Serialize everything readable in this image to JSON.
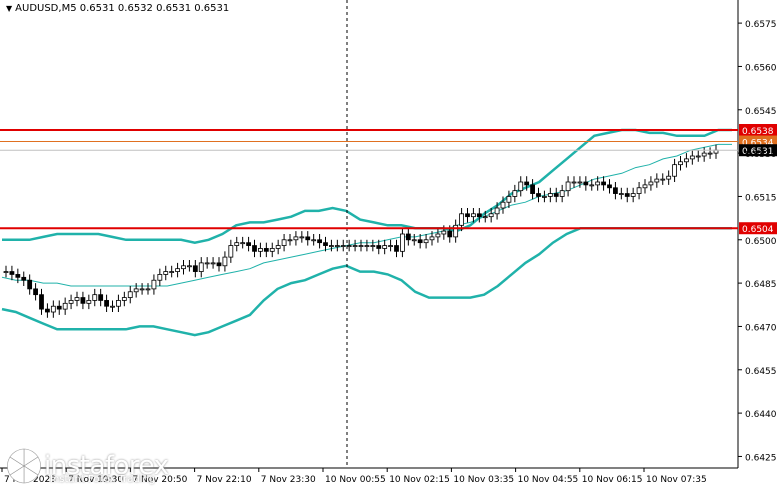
{
  "header": {
    "symbol": "AUDUSD,M5",
    "ohlc": "0.6531 0.6532 0.6531 0.6531"
  },
  "watermark": {
    "brand": "instaforex",
    "tagline": "Instant Forex Trading"
  },
  "colors": {
    "background": "#ffffff",
    "candle": "#000000",
    "bollinger": "#20b2aa",
    "resistance": "#e00000",
    "support": "#e00000",
    "price_line": "#e07020",
    "grid_vline": "#000000"
  },
  "chart_data": {
    "type": "candlestick",
    "symbol": "AUDUSD",
    "timeframe": "M5",
    "ylim": [
      0.6421,
      0.6583
    ],
    "y_ticks": [
      "0.6575",
      "0.6560",
      "0.6545",
      "0.6530",
      "0.6515",
      "0.6500",
      "0.6485",
      "0.6470",
      "0.6455",
      "0.6440",
      "0.6425"
    ],
    "x_ticks": [
      "7 Nov 2023",
      "7 Nov 19:30",
      "7 Nov 20:50",
      "7 Nov 22:10",
      "7 Nov 23:30",
      "10 Nov 00:55",
      "10 Nov 02:15",
      "10 Nov 03:35",
      "10 Nov 04:55",
      "10 Nov 06:15",
      "10 Nov 07:35"
    ],
    "horizontal_levels": [
      {
        "label": "0.6538",
        "value": 0.6538,
        "color": "#e00000"
      },
      {
        "label": "0.6534",
        "value": 0.6534,
        "color": "#e07020"
      },
      {
        "label": "0.6504",
        "value": 0.6504,
        "color": "#e00000"
      }
    ],
    "current_price": {
      "label": "0.6531",
      "value": 0.6531
    },
    "period_separator_x": "7 Nov 23:30",
    "close": [
      0.6489,
      0.6488,
      0.6487,
      0.6486,
      0.6483,
      0.6481,
      0.6476,
      0.6475,
      0.6477,
      0.6476,
      0.6478,
      0.6479,
      0.648,
      0.6478,
      0.6479,
      0.6481,
      0.6479,
      0.6477,
      0.6477,
      0.6479,
      0.648,
      0.6482,
      0.6483,
      0.6483,
      0.6483,
      0.6486,
      0.6488,
      0.6489,
      0.6489,
      0.649,
      0.6491,
      0.6491,
      0.6489,
      0.6492,
      0.6492,
      0.6492,
      0.6491,
      0.6494,
      0.6498,
      0.6499,
      0.6499,
      0.6498,
      0.6496,
      0.6497,
      0.6496,
      0.6497,
      0.6498,
      0.65,
      0.65,
      0.6501,
      0.6501,
      0.65,
      0.65,
      0.6499,
      0.6498,
      0.6498,
      0.6498,
      0.6498,
      0.6498,
      0.6498,
      0.6498,
      0.6498,
      0.6498,
      0.6497,
      0.6498,
      0.6498,
      0.6496,
      0.6502,
      0.65,
      0.65,
      0.6499,
      0.65,
      0.6501,
      0.6502,
      0.6503,
      0.6501,
      0.6505,
      0.6509,
      0.6508,
      0.6509,
      0.6508,
      0.6508,
      0.6509,
      0.6511,
      0.6513,
      0.6515,
      0.6517,
      0.652,
      0.6519,
      0.6516,
      0.6515,
      0.6515,
      0.6516,
      0.6515,
      0.6517,
      0.652,
      0.652,
      0.652,
      0.6519,
      0.6519,
      0.652,
      0.6519,
      0.6518,
      0.6516,
      0.6516,
      0.6515,
      0.6516,
      0.6518,
      0.6519,
      0.652,
      0.6521,
      0.6521,
      0.6522,
      0.6526,
      0.6527,
      0.6528,
      0.6529,
      0.6529,
      0.653,
      0.653,
      0.6531
    ],
    "bollinger_upper": [
      0.65,
      0.65,
      0.65,
      0.6501,
      0.6502,
      0.6502,
      0.6502,
      0.6502,
      0.6501,
      0.65,
      0.65,
      0.65,
      0.65,
      0.65,
      0.6499,
      0.65,
      0.6502,
      0.6505,
      0.6506,
      0.6506,
      0.6507,
      0.6508,
      0.651,
      0.651,
      0.6511,
      0.651,
      0.6507,
      0.6506,
      0.6505,
      0.6505,
      0.6504,
      0.6504,
      0.6504,
      0.6503,
      0.6505,
      0.6509,
      0.6512,
      0.6516,
      0.6518,
      0.652,
      0.6524,
      0.6528,
      0.6532,
      0.6536,
      0.6537,
      0.6538,
      0.6538,
      0.6537,
      0.6537,
      0.6536,
      0.6536,
      0.6536,
      0.6538,
      0.6538
    ],
    "bollinger_middle": [
      0.6487,
      0.6486,
      0.6486,
      0.6485,
      0.6485,
      0.6484,
      0.6484,
      0.6484,
      0.6484,
      0.6484,
      0.6484,
      0.6484,
      0.6484,
      0.6485,
      0.6486,
      0.6487,
      0.6488,
      0.6489,
      0.649,
      0.6492,
      0.6493,
      0.6494,
      0.6495,
      0.6496,
      0.6497,
      0.6498,
      0.6499,
      0.6499,
      0.65,
      0.6501,
      0.6501,
      0.6502,
      0.6503,
      0.6505,
      0.6506,
      0.6508,
      0.651,
      0.6512,
      0.6513,
      0.6515,
      0.6516,
      0.6517,
      0.6519,
      0.6521,
      0.6522,
      0.6523,
      0.6525,
      0.6526,
      0.6528,
      0.6529,
      0.6531,
      0.6532,
      0.6533,
      0.6533
    ],
    "bollinger_lower": [
      0.6476,
      0.6475,
      0.6473,
      0.6471,
      0.6469,
      0.6469,
      0.6469,
      0.6469,
      0.6469,
      0.6469,
      0.647,
      0.647,
      0.6469,
      0.6468,
      0.6467,
      0.6468,
      0.647,
      0.6472,
      0.6474,
      0.6479,
      0.6483,
      0.6485,
      0.6486,
      0.6488,
      0.649,
      0.6491,
      0.6489,
      0.6489,
      0.6488,
      0.6486,
      0.6482,
      0.648,
      0.648,
      0.648,
      0.648,
      0.6481,
      0.6484,
      0.6488,
      0.6492,
      0.6495,
      0.6499,
      0.6502,
      0.6504,
      0.6504,
      0.6504,
      0.6504,
      0.6504,
      0.6504,
      0.6504,
      0.6504,
      0.6504,
      0.6504,
      0.6504,
      0.6504
    ]
  }
}
